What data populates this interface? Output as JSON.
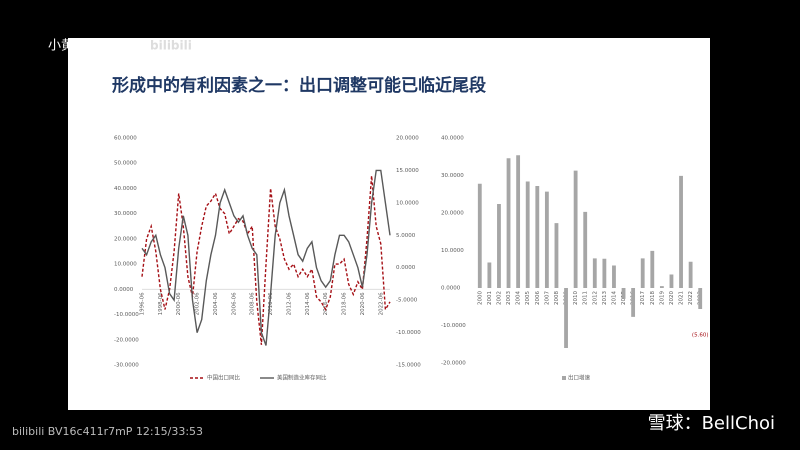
{
  "page": {
    "title": "形成中的有利因素之一：出口调整可能已临近尾段",
    "top_watermark": "小黄",
    "logo": "bilibili",
    "video_info": "bilibili BV16c411r7mP 12:15/33:53",
    "source": "雪球：BellChoi"
  },
  "chart_data": [
    {
      "type": "line",
      "categories": [
        "1996-06",
        null,
        null,
        null,
        "1998-06",
        null,
        null,
        null,
        "2000-06",
        null,
        null,
        null,
        "2002-06",
        null,
        null,
        null,
        "2004-06",
        null,
        null,
        null,
        "2006-06",
        null,
        null,
        null,
        "2008-06",
        null,
        null,
        null,
        "2010-06",
        null,
        null,
        null,
        "2012-06",
        null,
        null,
        null,
        "2014-06",
        null,
        null,
        null,
        "2016-06",
        null,
        null,
        null,
        "2018-06",
        null,
        null,
        null,
        "2020-06",
        null,
        null,
        null,
        "2022-06",
        null,
        null
      ],
      "series": [
        {
          "name": "中国出口同比",
          "color": "#a50f15",
          "axis": "y",
          "values": [
            5,
            20,
            25,
            15,
            0,
            -8,
            0,
            15,
            38,
            25,
            5,
            -3,
            15,
            25,
            33,
            35,
            38,
            32,
            30,
            22,
            25,
            28,
            27,
            22,
            25,
            -5,
            -22,
            10,
            40,
            25,
            20,
            12,
            8,
            10,
            5,
            8,
            5,
            8,
            -3,
            -5,
            -8,
            -3,
            10,
            10,
            12,
            2,
            -2,
            3,
            0,
            20,
            45,
            25,
            18,
            -8,
            -5
          ]
        },
        {
          "name": "美国制造业库存同比",
          "color": "#595959",
          "axis": "y2",
          "values": [
            3,
            2,
            4,
            5,
            2,
            0,
            -4,
            -5,
            3,
            8,
            5,
            -5,
            -10,
            -8,
            -2,
            2,
            5,
            10,
            12,
            10,
            8,
            7,
            8,
            5,
            3,
            2,
            -10,
            -12,
            -4,
            5,
            10,
            12,
            8,
            5,
            2,
            1,
            3,
            4,
            0,
            -2,
            -3,
            -2,
            2,
            5,
            5,
            4,
            2,
            0,
            -3,
            2,
            10,
            15,
            15,
            10,
            5
          ]
        }
      ],
      "ylim": [
        -30,
        60
      ],
      "yticks": [
        {
          "value": -30,
          "label": "-30.0000"
        },
        {
          "value": -20,
          "label": "-20.0000"
        },
        {
          "value": -10,
          "label": "-10.0000"
        },
        {
          "value": 0,
          "label": "0.0000"
        },
        {
          "value": 10,
          "label": "10.0000"
        },
        {
          "value": 20,
          "label": "20.0000"
        },
        {
          "value": 30,
          "label": "30.0000"
        },
        {
          "value": 40,
          "label": "40.0000"
        },
        {
          "value": 50,
          "label": "50.0000"
        },
        {
          "value": 60,
          "label": "60.0000"
        }
      ],
      "y2lim": [
        -15,
        20
      ],
      "y2ticks": [
        {
          "value": -15,
          "label": "-15.0000"
        },
        {
          "value": -10,
          "label": "-10.0000"
        },
        {
          "value": -5,
          "label": "-5.0000"
        },
        {
          "value": 0,
          "label": "0.0000"
        },
        {
          "value": 5,
          "label": "5.0000"
        },
        {
          "value": 10,
          "label": "10.0000"
        },
        {
          "value": 15,
          "label": "15.0000"
        },
        {
          "value": 20,
          "label": "20.0000"
        }
      ],
      "legend": "bottom"
    },
    {
      "type": "bar",
      "categories": [
        "2000",
        "2001",
        "2002",
        "2003",
        "2004",
        "2005",
        "2006",
        "2007",
        "2008",
        "2009",
        "2010",
        "2011",
        "2012",
        "2013",
        "2014",
        "2015",
        "2016",
        "2017",
        "2018",
        "2019",
        "2020",
        "2021",
        "2022",
        "2023"
      ],
      "series": [
        {
          "name": "出口增速",
          "color": "#a6a6a6",
          "values": [
            27.8,
            6.8,
            22.4,
            34.6,
            35.4,
            28.4,
            27.2,
            25.7,
            17.3,
            -16,
            31.3,
            20.3,
            7.9,
            7.8,
            6,
            -2.9,
            -7.7,
            7.9,
            9.9,
            0.5,
            3.6,
            29.9,
            7,
            -5.6
          ],
          "value_labels": [
            null,
            null,
            null,
            null,
            null,
            null,
            null,
            null,
            null,
            null,
            null,
            null,
            null,
            null,
            null,
            null,
            null,
            null,
            null,
            null,
            null,
            null,
            null,
            "(5.60)"
          ]
        }
      ],
      "ylim": [
        -20,
        40
      ],
      "yticks": [
        {
          "value": -20,
          "label": "-20.0000"
        },
        {
          "value": -10,
          "label": "-10.0000"
        },
        {
          "value": 0,
          "label": "0.0000"
        },
        {
          "value": 10,
          "label": "10.0000"
        },
        {
          "value": 20,
          "label": "20.0000"
        },
        {
          "value": 30,
          "label": "30.0000"
        },
        {
          "value": 40,
          "label": "40.0000"
        }
      ],
      "legend": "bottom"
    }
  ]
}
